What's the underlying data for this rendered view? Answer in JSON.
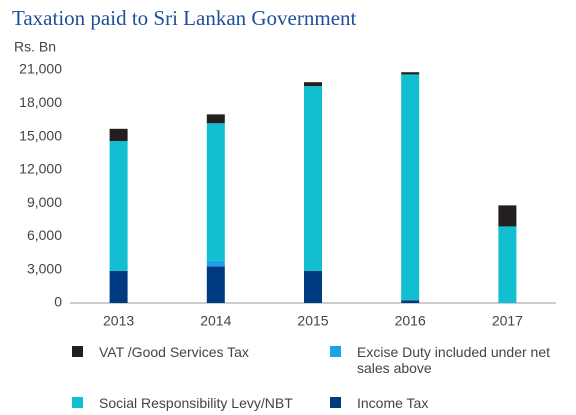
{
  "chart_data": {
    "type": "stacked_bar",
    "title": "Taxation paid to Sri Lankan Government",
    "y_axis_label": "Rs. Bn",
    "categories": [
      "2013",
      "2014",
      "2015",
      "2016",
      "2017"
    ],
    "series": [
      {
        "name": "Income Tax",
        "color": "#003a80",
        "values": [
          2900,
          3300,
          2900,
          250,
          0
        ]
      },
      {
        "name": "Excise Duty included under net sales above",
        "color": "#1ba3e8",
        "values": [
          0,
          500,
          0,
          0,
          0
        ]
      },
      {
        "name": "Social Responsibility Levy/NBT",
        "color": "#12bfd0",
        "values": [
          11700,
          12400,
          16650,
          20350,
          6900
        ]
      },
      {
        "name": "VAT /Good Services Tax",
        "color": "#231f20",
        "values": [
          1100,
          800,
          350,
          200,
          1900
        ]
      }
    ],
    "ylim": [
      0,
      21000
    ],
    "yticks": [
      0,
      {
        "value": 3000,
        "label": "3,000"
      },
      {
        "value": 6000,
        "label": "6,000"
      },
      {
        "value": 9000,
        "label": "9,000"
      },
      {
        "value": 12000,
        "label": "12,000"
      },
      {
        "value": 15000,
        "label": "15,000"
      },
      {
        "value": 18000,
        "label": "18,000"
      },
      {
        "value": 21000,
        "label": "21,000"
      }
    ],
    "grid": false
  }
}
